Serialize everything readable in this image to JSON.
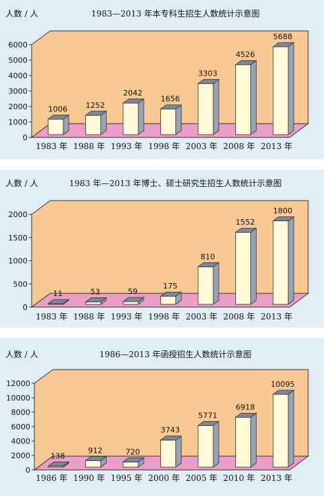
{
  "chart_data": [
    {
      "type": "bar",
      "title": "1983—2013 年本专科生招生人数统计示意图",
      "ylabel": "人数 / 人",
      "categories": [
        "1983 年",
        "1988 年",
        "1993 年",
        "1998 年",
        "2003 年",
        "2008 年",
        "2013 年"
      ],
      "values": [
        1006,
        1252,
        2042,
        1656,
        3303,
        4526,
        5688
      ],
      "ylim": [
        0,
        6000
      ],
      "yticks": [
        0,
        1000,
        2000,
        3000,
        4000,
        5000,
        6000
      ]
    },
    {
      "type": "bar",
      "title": "1983 年—2013 年博士、硕士研究生招生人数统计示意图",
      "ylabel": "人数 / 人",
      "categories": [
        "1983 年",
        "1988 年",
        "1993 年",
        "1998 年",
        "2003 年",
        "2008 年",
        "2013 年"
      ],
      "values": [
        11,
        53,
        59,
        175,
        810,
        1552,
        1800
      ],
      "ylim": [
        0,
        2000
      ],
      "yticks": [
        0,
        500,
        1000,
        1500,
        2000
      ]
    },
    {
      "type": "bar",
      "title": "1986—2013 年函授招生人数统计示意图",
      "ylabel": "人数 / 人",
      "categories": [
        "1986 年",
        "1990 年",
        "1995 年",
        "2000 年",
        "2005 年",
        "2010 年",
        "2013 年"
      ],
      "values": [
        138,
        912,
        720,
        3743,
        5771,
        6918,
        10095
      ],
      "ylim": [
        0,
        12000
      ],
      "yticks": [
        0,
        2000,
        4000,
        6000,
        8000,
        10000,
        12000
      ]
    }
  ],
  "colors": {
    "panel_bg": "#e2eef6",
    "back_wall": "#f9c993",
    "floor": "#ec9ec9",
    "bar_front": "#fff9d8",
    "bar_side": "#9aa3b5",
    "bar_top": "#7f889a",
    "axis": "#333333"
  }
}
